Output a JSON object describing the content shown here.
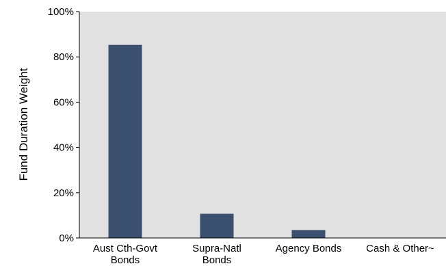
{
  "chart_data": {
    "type": "bar",
    "categories": [
      [
        "Aust Cth-Govt",
        "Bonds"
      ],
      [
        "Supra-Natl",
        "Bonds"
      ],
      [
        "Agency Bonds"
      ],
      [
        "Cash & Other~"
      ]
    ],
    "values": [
      85.3,
      10.7,
      3.5,
      0
    ],
    "ylabel": "Fund Duration Weight",
    "xlabel": "",
    "ylim": [
      0,
      100
    ],
    "yticks": [
      0,
      20,
      40,
      60,
      80,
      100
    ],
    "ytick_format": "{v}%",
    "bar_color": "#3b4f6e",
    "plot_background": "#e1e1e1",
    "grid": false
  }
}
